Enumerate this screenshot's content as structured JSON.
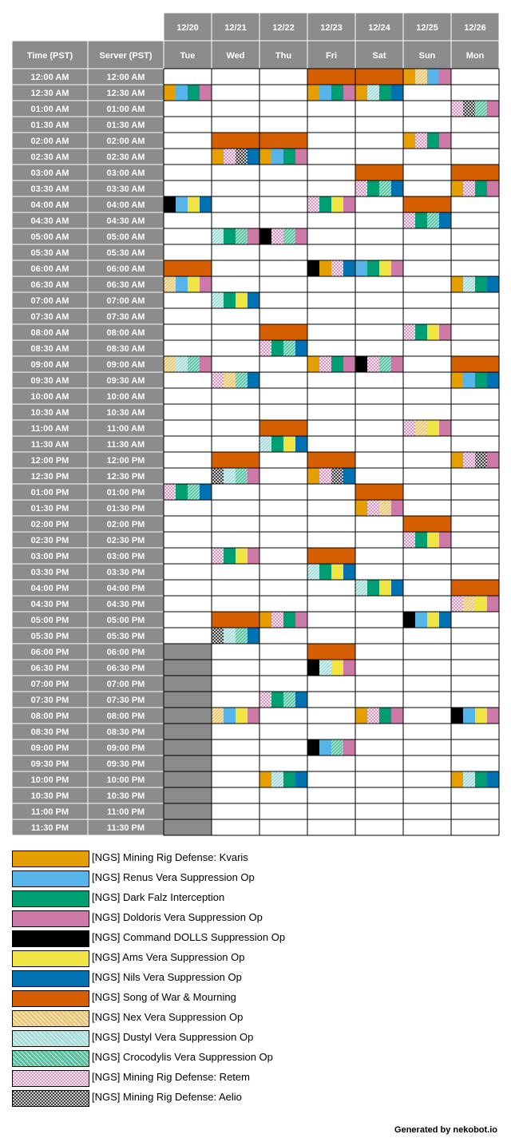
{
  "headers": {
    "time_pst": "Time (PST)",
    "server_pst": "Server (PST)"
  },
  "days": [
    {
      "date": "12/20",
      "weekday": "Tue"
    },
    {
      "date": "12/21",
      "weekday": "Wed"
    },
    {
      "date": "12/22",
      "weekday": "Thu"
    },
    {
      "date": "12/23",
      "weekday": "Fri"
    },
    {
      "date": "12/24",
      "weekday": "Sat"
    },
    {
      "date": "12/25",
      "weekday": "Sun"
    },
    {
      "date": "12/26",
      "weekday": "Mon"
    }
  ],
  "time_slots": [
    "12:00 AM",
    "12:30 AM",
    "01:00 AM",
    "01:30 AM",
    "02:00 AM",
    "02:30 AM",
    "03:00 AM",
    "03:30 AM",
    "04:00 AM",
    "04:30 AM",
    "05:00 AM",
    "05:30 AM",
    "06:00 AM",
    "06:30 AM",
    "07:00 AM",
    "07:30 AM",
    "08:00 AM",
    "08:30 AM",
    "09:00 AM",
    "09:30 AM",
    "10:00 AM",
    "10:30 AM",
    "11:00 AM",
    "11:30 AM",
    "12:00 PM",
    "12:30 PM",
    "01:00 PM",
    "01:30 PM",
    "02:00 PM",
    "02:30 PM",
    "03:00 PM",
    "03:30 PM",
    "04:00 PM",
    "04:30 PM",
    "05:00 PM",
    "05:30 PM",
    "06:00 PM",
    "06:30 PM",
    "07:00 PM",
    "07:30 PM",
    "08:00 PM",
    "08:30 PM",
    "09:00 PM",
    "09:30 PM",
    "10:00 PM",
    "10:30 PM",
    "11:00 PM",
    "11:30 PM"
  ],
  "legend": [
    {
      "key": "kvaris",
      "label": "[NGS] Mining Rig Defense: Kvaris",
      "color": "#e69f00",
      "pattern": "solid"
    },
    {
      "key": "renus",
      "label": "[NGS] Renus Vera Suppression Op",
      "color": "#56b4e9",
      "pattern": "solid"
    },
    {
      "key": "falz",
      "label": "[NGS] Dark Falz Interception",
      "color": "#009e73",
      "pattern": "solid"
    },
    {
      "key": "doldoris",
      "label": "[NGS] Doldoris Vera Suppression Op",
      "color": "#cc79a7",
      "pattern": "solid"
    },
    {
      "key": "dolls",
      "label": "[NGS] Command DOLLS Suppression Op",
      "color": "#000000",
      "pattern": "solid"
    },
    {
      "key": "ams",
      "label": "[NGS] Ams Vera Suppression Op",
      "color": "#f0e442",
      "pattern": "solid"
    },
    {
      "key": "nils",
      "label": "[NGS] Nils Vera Suppression Op",
      "color": "#0072b2",
      "pattern": "solid"
    },
    {
      "key": "sow",
      "label": "[NGS] Song of War & Mourning",
      "color": "#d55e00",
      "pattern": "solid"
    },
    {
      "key": "nex",
      "label": "[NGS] Nex Vera Suppression Op",
      "color": "#e8c878",
      "pattern": "hatch"
    },
    {
      "key": "dustyl",
      "label": "[NGS] Dustyl Vera Suppression Op",
      "color": "#a8dcd8",
      "pattern": "hatch"
    },
    {
      "key": "croc",
      "label": "[NGS] Crocodylis Vera Suppression Op",
      "color": "#58c0a0",
      "pattern": "hatch"
    },
    {
      "key": "retem",
      "label": "[NGS] Mining Rig Defense: Retem",
      "color": "#d898c0",
      "pattern": "checker"
    },
    {
      "key": "aelio",
      "label": "[NGS] Mining Rig Defense: Aelio",
      "color": "#404040",
      "pattern": "checker"
    }
  ],
  "chart_data": {
    "type": "table",
    "day_columns": [
      "12/20 Tue",
      "12/21 Wed",
      "12/22 Thu",
      "12/23 Fri",
      "12/24 Sat",
      "12/25 Sun",
      "12/26 Mon"
    ],
    "unavailable": [
      {
        "day": 0,
        "from_slot": 36,
        "to_slot": 47
      }
    ],
    "events": [
      {
        "day": 3,
        "slot": 0,
        "keys": [
          "sow"
        ]
      },
      {
        "day": 4,
        "slot": 0,
        "keys": [
          "sow"
        ]
      },
      {
        "day": 5,
        "slot": 0,
        "keys": [
          "kvaris",
          "nex",
          "renus",
          "doldoris"
        ]
      },
      {
        "day": 0,
        "slot": 1,
        "keys": [
          "kvaris",
          "renus",
          "falz",
          "doldoris"
        ]
      },
      {
        "day": 3,
        "slot": 1,
        "keys": [
          "kvaris",
          "renus",
          "falz",
          "doldoris"
        ]
      },
      {
        "day": 4,
        "slot": 1,
        "keys": [
          "kvaris",
          "dustyl",
          "falz",
          "nils"
        ]
      },
      {
        "day": 6,
        "slot": 2,
        "keys": [
          "retem",
          "aelio",
          "croc",
          "doldoris"
        ]
      },
      {
        "day": 1,
        "slot": 4,
        "keys": [
          "sow"
        ]
      },
      {
        "day": 2,
        "slot": 4,
        "keys": [
          "sow"
        ]
      },
      {
        "day": 5,
        "slot": 4,
        "keys": [
          "kvaris",
          "retem",
          "falz",
          "doldoris"
        ]
      },
      {
        "day": 1,
        "slot": 5,
        "keys": [
          "kvaris",
          "retem",
          "aelio",
          "nils"
        ]
      },
      {
        "day": 2,
        "slot": 5,
        "keys": [
          "kvaris",
          "renus",
          "falz",
          "doldoris"
        ]
      },
      {
        "day": 4,
        "slot": 6,
        "keys": [
          "sow"
        ]
      },
      {
        "day": 6,
        "slot": 6,
        "keys": [
          "sow"
        ]
      },
      {
        "day": 4,
        "slot": 7,
        "keys": [
          "retem",
          "falz",
          "croc",
          "nils"
        ]
      },
      {
        "day": 6,
        "slot": 7,
        "keys": [
          "kvaris",
          "retem",
          "falz",
          "doldoris"
        ]
      },
      {
        "day": 0,
        "slot": 8,
        "keys": [
          "dolls",
          "renus",
          "ams",
          "nils"
        ]
      },
      {
        "day": 3,
        "slot": 8,
        "keys": [
          "retem",
          "falz",
          "ams",
          "doldoris"
        ]
      },
      {
        "day": 5,
        "slot": 8,
        "keys": [
          "sow"
        ]
      },
      {
        "day": 5,
        "slot": 9,
        "keys": [
          "retem",
          "falz",
          "croc",
          "nils"
        ]
      },
      {
        "day": 1,
        "slot": 10,
        "keys": [
          "dustyl",
          "falz",
          "croc",
          "doldoris"
        ]
      },
      {
        "day": 2,
        "slot": 10,
        "keys": [
          "dolls",
          "retem",
          "croc",
          "doldoris"
        ]
      },
      {
        "day": 0,
        "slot": 12,
        "keys": [
          "sow"
        ]
      },
      {
        "day": 3,
        "slot": 12,
        "keys": [
          "dolls",
          "kvaris",
          "retem",
          "nils"
        ]
      },
      {
        "day": 4,
        "slot": 12,
        "keys": [
          "renus",
          "falz",
          "ams",
          "doldoris"
        ]
      },
      {
        "day": 0,
        "slot": 13,
        "keys": [
          "nex",
          "renus",
          "ams",
          "doldoris"
        ]
      },
      {
        "day": 6,
        "slot": 13,
        "keys": [
          "kvaris",
          "dustyl",
          "falz",
          "nils"
        ]
      },
      {
        "day": 1,
        "slot": 14,
        "keys": [
          "dustyl",
          "falz",
          "ams",
          "nils"
        ]
      },
      {
        "day": 2,
        "slot": 16,
        "keys": [
          "sow"
        ]
      },
      {
        "day": 5,
        "slot": 16,
        "keys": [
          "retem",
          "falz",
          "ams",
          "doldoris"
        ]
      },
      {
        "day": 2,
        "slot": 17,
        "keys": [
          "retem",
          "falz",
          "croc",
          "nils"
        ]
      },
      {
        "day": 0,
        "slot": 18,
        "keys": [
          "nex",
          "dustyl",
          "croc",
          "doldoris"
        ]
      },
      {
        "day": 3,
        "slot": 18,
        "keys": [
          "kvaris",
          "retem",
          "falz",
          "doldoris"
        ]
      },
      {
        "day": 4,
        "slot": 18,
        "keys": [
          "dolls",
          "retem",
          "croc",
          "doldoris"
        ]
      },
      {
        "day": 6,
        "slot": 18,
        "keys": [
          "sow"
        ]
      },
      {
        "day": 1,
        "slot": 19,
        "keys": [
          "retem",
          "nex",
          "croc",
          "nils"
        ]
      },
      {
        "day": 6,
        "slot": 19,
        "keys": [
          "kvaris",
          "renus",
          "falz",
          "nils"
        ]
      },
      {
        "day": 2,
        "slot": 22,
        "keys": [
          "sow"
        ]
      },
      {
        "day": 5,
        "slot": 22,
        "keys": [
          "retem",
          "nex",
          "ams",
          "doldoris"
        ]
      },
      {
        "day": 2,
        "slot": 23,
        "keys": [
          "dustyl",
          "falz",
          "ams",
          "nils"
        ]
      },
      {
        "day": 1,
        "slot": 24,
        "keys": [
          "sow"
        ]
      },
      {
        "day": 3,
        "slot": 24,
        "keys": [
          "sow"
        ]
      },
      {
        "day": 6,
        "slot": 24,
        "keys": [
          "kvaris",
          "retem",
          "aelio",
          "doldoris"
        ]
      },
      {
        "day": 1,
        "slot": 25,
        "keys": [
          "aelio",
          "dustyl",
          "croc",
          "doldoris"
        ]
      },
      {
        "day": 3,
        "slot": 25,
        "keys": [
          "kvaris",
          "retem",
          "aelio",
          "nils"
        ]
      },
      {
        "day": 0,
        "slot": 26,
        "keys": [
          "retem",
          "falz",
          "croc",
          "nils"
        ]
      },
      {
        "day": 4,
        "slot": 26,
        "keys": [
          "sow"
        ]
      },
      {
        "day": 4,
        "slot": 27,
        "keys": [
          "kvaris",
          "retem",
          "nex",
          "doldoris"
        ]
      },
      {
        "day": 5,
        "slot": 28,
        "keys": [
          "sow"
        ]
      },
      {
        "day": 5,
        "slot": 29,
        "keys": [
          "retem",
          "falz",
          "ams",
          "doldoris"
        ]
      },
      {
        "day": 1,
        "slot": 30,
        "keys": [
          "retem",
          "falz",
          "ams",
          "doldoris"
        ]
      },
      {
        "day": 3,
        "slot": 30,
        "keys": [
          "sow"
        ]
      },
      {
        "day": 3,
        "slot": 31,
        "keys": [
          "dustyl",
          "falz",
          "ams",
          "nils"
        ]
      },
      {
        "day": 4,
        "slot": 32,
        "keys": [
          "dustyl",
          "falz",
          "ams",
          "nils"
        ]
      },
      {
        "day": 6,
        "slot": 32,
        "keys": [
          "sow"
        ]
      },
      {
        "day": 6,
        "slot": 33,
        "keys": [
          "retem",
          "nex",
          "ams",
          "doldoris"
        ]
      },
      {
        "day": 1,
        "slot": 34,
        "keys": [
          "sow"
        ]
      },
      {
        "day": 2,
        "slot": 34,
        "keys": [
          "kvaris",
          "retem",
          "falz",
          "doldoris"
        ]
      },
      {
        "day": 5,
        "slot": 34,
        "keys": [
          "dolls",
          "renus",
          "ams",
          "nils"
        ]
      },
      {
        "day": 1,
        "slot": 35,
        "keys": [
          "aelio",
          "dustyl",
          "croc",
          "nils"
        ]
      },
      {
        "day": 3,
        "slot": 36,
        "keys": [
          "sow"
        ]
      },
      {
        "day": 3,
        "slot": 37,
        "keys": [
          "dolls",
          "dustyl",
          "ams",
          "doldoris"
        ]
      },
      {
        "day": 2,
        "slot": 39,
        "keys": [
          "retem",
          "falz",
          "croc",
          "nils"
        ]
      },
      {
        "day": 1,
        "slot": 40,
        "keys": [
          "nex",
          "renus",
          "ams",
          "doldoris"
        ]
      },
      {
        "day": 4,
        "slot": 40,
        "keys": [
          "kvaris",
          "retem",
          "falz",
          "doldoris"
        ]
      },
      {
        "day": 6,
        "slot": 40,
        "keys": [
          "dolls",
          "renus",
          "ams",
          "doldoris"
        ]
      },
      {
        "day": 3,
        "slot": 42,
        "keys": [
          "dolls",
          "renus",
          "croc",
          "doldoris"
        ]
      },
      {
        "day": 2,
        "slot": 44,
        "keys": [
          "kvaris",
          "dustyl",
          "falz",
          "nils"
        ]
      },
      {
        "day": 6,
        "slot": 44,
        "keys": [
          "kvaris",
          "dustyl",
          "falz",
          "nils"
        ]
      }
    ]
  },
  "footer": "Generated by nekobot.io"
}
